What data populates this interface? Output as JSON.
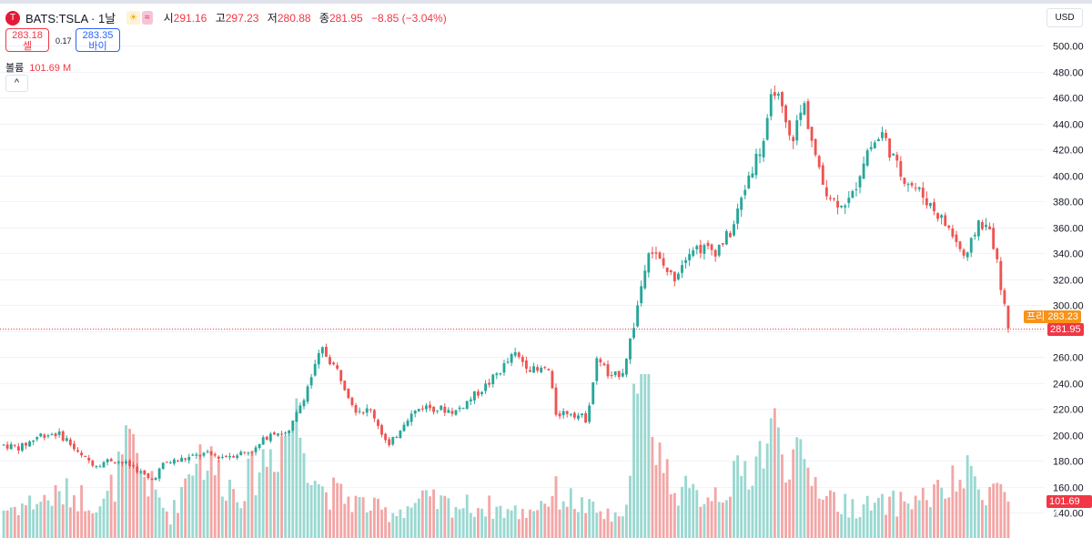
{
  "header": {
    "logo_glyph": "T",
    "symbol": "BATS:TSLA · 1날",
    "badge_sun": "☀",
    "badge_wave": "≈",
    "open_label": "시",
    "open": "291.16",
    "high_label": "고",
    "high": "297.23",
    "low_label": "저",
    "low": "280.88",
    "close_label": "종",
    "close": "281.95",
    "change": "−8.85 (−3.04%)"
  },
  "trade": {
    "sell_price": "283.18",
    "sell_label": "셀",
    "spread": "0.17",
    "buy_price": "283.35",
    "buy_label": "바이"
  },
  "volume_legend": {
    "label": "볼륨",
    "value": "101.69 M"
  },
  "collapse_glyph": "^",
  "currency": "USD",
  "price_tags": {
    "premarket_label": "프리",
    "premarket_value": "283.23",
    "last_value": "281.95",
    "volume_value": "101.69 M"
  },
  "colors": {
    "up": "#26a69a",
    "down": "#ef5350",
    "vol_up": "#9ad8d1",
    "vol_down": "#f3a6a6",
    "premarket": "#f7931a",
    "last": "#f23645"
  },
  "chart_data": {
    "type": "candlestick",
    "title": "BATS:TSLA · 1날",
    "ylim": [
      140,
      510
    ],
    "yticks": [
      140,
      160,
      180,
      200,
      220,
      240,
      260,
      280,
      300,
      320,
      340,
      360,
      380,
      400,
      420,
      440,
      460,
      480,
      500
    ],
    "last_close": 281.95,
    "premarket_price": 283.23,
    "last_volume_millions": 101.69,
    "anchors": [
      [
        0,
        192
      ],
      [
        10,
        190
      ],
      [
        22,
        200
      ],
      [
        32,
        201
      ],
      [
        38,
        196
      ],
      [
        45,
        184
      ],
      [
        55,
        177
      ],
      [
        65,
        181
      ],
      [
        78,
        175
      ],
      [
        88,
        164
      ],
      [
        96,
        178
      ],
      [
        110,
        182
      ],
      [
        120,
        185
      ],
      [
        130,
        183
      ],
      [
        150,
        188
      ],
      [
        160,
        203
      ],
      [
        170,
        200
      ],
      [
        180,
        232
      ],
      [
        190,
        266
      ],
      [
        200,
        248
      ],
      [
        210,
        220
      ],
      [
        220,
        218
      ],
      [
        230,
        190
      ],
      [
        240,
        212
      ],
      [
        250,
        222
      ],
      [
        270,
        218
      ],
      [
        290,
        240
      ],
      [
        305,
        262
      ],
      [
        318,
        248
      ],
      [
        325,
        252
      ],
      [
        330,
        216
      ],
      [
        338,
        218
      ],
      [
        348,
        212
      ],
      [
        355,
        262
      ],
      [
        362,
        242
      ],
      [
        370,
        250
      ],
      [
        377,
        288
      ],
      [
        385,
        345
      ],
      [
        400,
        320
      ],
      [
        410,
        345
      ],
      [
        425,
        342
      ],
      [
        435,
        357
      ],
      [
        445,
        400
      ],
      [
        455,
        430
      ],
      [
        460,
        470
      ],
      [
        470,
        425
      ],
      [
        478,
        455
      ],
      [
        488,
        396
      ],
      [
        496,
        380
      ],
      [
        506,
        380
      ],
      [
        515,
        418
      ],
      [
        525,
        432
      ],
      [
        535,
        402
      ],
      [
        545,
        390
      ],
      [
        555,
        375
      ],
      [
        565,
        358
      ],
      [
        575,
        334
      ],
      [
        582,
        365
      ],
      [
        590,
        356
      ],
      [
        600,
        282
      ]
    ],
    "volume_anchors": [
      [
        0,
        35
      ],
      [
        40,
        55
      ],
      [
        60,
        40
      ],
      [
        75,
        110
      ],
      [
        90,
        55
      ],
      [
        100,
        25
      ],
      [
        115,
        110
      ],
      [
        128,
        80
      ],
      [
        140,
        55
      ],
      [
        155,
        95
      ],
      [
        175,
        145
      ],
      [
        190,
        60
      ],
      [
        210,
        45
      ],
      [
        230,
        30
      ],
      [
        250,
        45
      ],
      [
        270,
        40
      ],
      [
        290,
        38
      ],
      [
        310,
        30
      ],
      [
        330,
        55
      ],
      [
        350,
        35
      ],
      [
        370,
        20
      ],
      [
        376,
        160
      ],
      [
        385,
        175
      ],
      [
        395,
        80
      ],
      [
        410,
        50
      ],
      [
        430,
        60
      ],
      [
        445,
        85
      ],
      [
        460,
        130
      ],
      [
        470,
        100
      ],
      [
        485,
        70
      ],
      [
        500,
        40
      ],
      [
        520,
        38
      ],
      [
        540,
        45
      ],
      [
        560,
        55
      ],
      [
        575,
        75
      ],
      [
        590,
        60
      ],
      [
        600,
        62
      ]
    ]
  }
}
